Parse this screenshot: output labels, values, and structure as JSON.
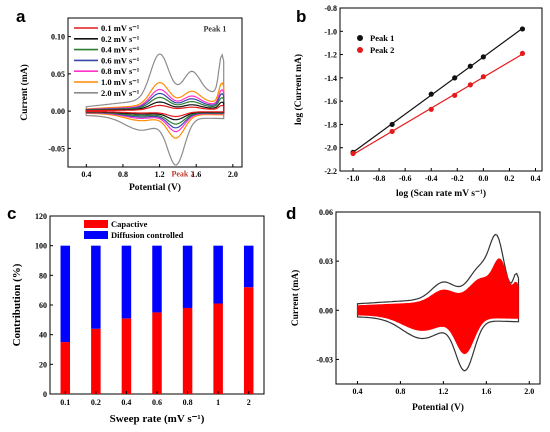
{
  "chart_data": [
    {
      "panel": "a",
      "type": "line",
      "xlabel": "Potential (V)",
      "ylabel": "Current (mA)",
      "xlim": [
        0.2,
        2.1
      ],
      "ylim": [
        -0.075,
        0.125
      ],
      "xticks": [
        "0.4",
        "0.8",
        "1.2",
        "1.6",
        "2.0"
      ],
      "yticks": [
        "-0.05",
        "0.00",
        "0.05",
        "0.10"
      ],
      "legend_placement": "top-left",
      "annotations": [
        {
          "text": "Peak 1",
          "x": 1.68,
          "y": 0.107,
          "color": "#333333"
        },
        {
          "text": "Peak 2",
          "x": 1.33,
          "y": -0.088,
          "color": "#c0392b"
        }
      ],
      "series": [
        {
          "name": "0.1 mV s⁻¹",
          "color": "#e41a1c",
          "scale": 0.1
        },
        {
          "name": "0.2 mV s⁻¹",
          "color": "#111111",
          "scale": 0.16
        },
        {
          "name": "0.4 mV s⁻¹",
          "color": "#2e7d32",
          "scale": 0.24
        },
        {
          "name": "0.6 mV s⁻¹",
          "color": "#3949ab",
          "scale": 0.31
        },
        {
          "name": "0.8 mV s⁻¹",
          "color": "#ff33cc",
          "scale": 0.38
        },
        {
          "name": "1.0 mV s⁻¹",
          "color": "#ff8c00",
          "scale": 0.5
        },
        {
          "name": "2.0 mV s⁻¹",
          "color": "#8c8c8c",
          "scale": 1.0
        }
      ]
    },
    {
      "panel": "b",
      "type": "scatter",
      "xlabel": "log (Scan rate mV s⁻¹)",
      "ylabel": "log (Current mA)",
      "xlim": [
        -1.1,
        0.45
      ],
      "ylim": [
        -2.2,
        -0.8
      ],
      "xticks": [
        "-1.0",
        "-0.8",
        "-0.6",
        "-0.4",
        "-0.2",
        "0.0",
        "0.2",
        "0.4"
      ],
      "yticks": [
        "-2.2",
        "-2.0",
        "-1.8",
        "-1.6",
        "-1.4",
        "-1.2",
        "-1.0",
        "-0.8"
      ],
      "legend_placement": "top-left",
      "x": [
        -1.0,
        -0.7,
        -0.4,
        -0.22,
        -0.1,
        0.0,
        0.3
      ],
      "series": [
        {
          "name": "Peak 1",
          "color": "#111111",
          "values": [
            -2.04,
            -1.8,
            -1.54,
            -1.4,
            -1.3,
            -1.22,
            -0.98
          ]
        },
        {
          "name": "Peak 2",
          "color": "#e41a1c",
          "values": [
            -2.05,
            -1.86,
            -1.67,
            -1.55,
            -1.46,
            -1.39,
            -1.19
          ]
        }
      ]
    },
    {
      "panel": "c",
      "type": "bar",
      "stacked": true,
      "xlabel": "Sweep rate (mV s⁻¹)",
      "ylabel": "Contribution (%)",
      "ylim": [
        0,
        120
      ],
      "yticks": [
        "0",
        "20",
        "40",
        "60",
        "80",
        "100",
        "120"
      ],
      "categories": [
        "0.1",
        "0.2",
        "0.4",
        "0.6",
        "0.8",
        "1",
        "2"
      ],
      "legend_placement": "top-left",
      "series": [
        {
          "name": "Capactive",
          "color": "#ff0000",
          "values": [
            35,
            44,
            51,
            55,
            58,
            61,
            72
          ]
        },
        {
          "name": "Diffusion controlled",
          "color": "#0000ff",
          "values": [
            65,
            56,
            49,
            45,
            42,
            39,
            28
          ]
        }
      ]
    },
    {
      "panel": "d",
      "type": "area",
      "xlabel": "Potential (V)",
      "ylabel": "Current (mA)",
      "xlim": [
        0.2,
        2.1
      ],
      "ylim": [
        -0.045,
        0.06
      ],
      "xticks": [
        "0.4",
        "0.8",
        "1.2",
        "1.6",
        "2.0"
      ],
      "yticks": [
        "-0.03",
        "0.00",
        "0.03",
        "0.06"
      ],
      "outline_color": "#333333",
      "fill_color": "#ff0000"
    }
  ]
}
